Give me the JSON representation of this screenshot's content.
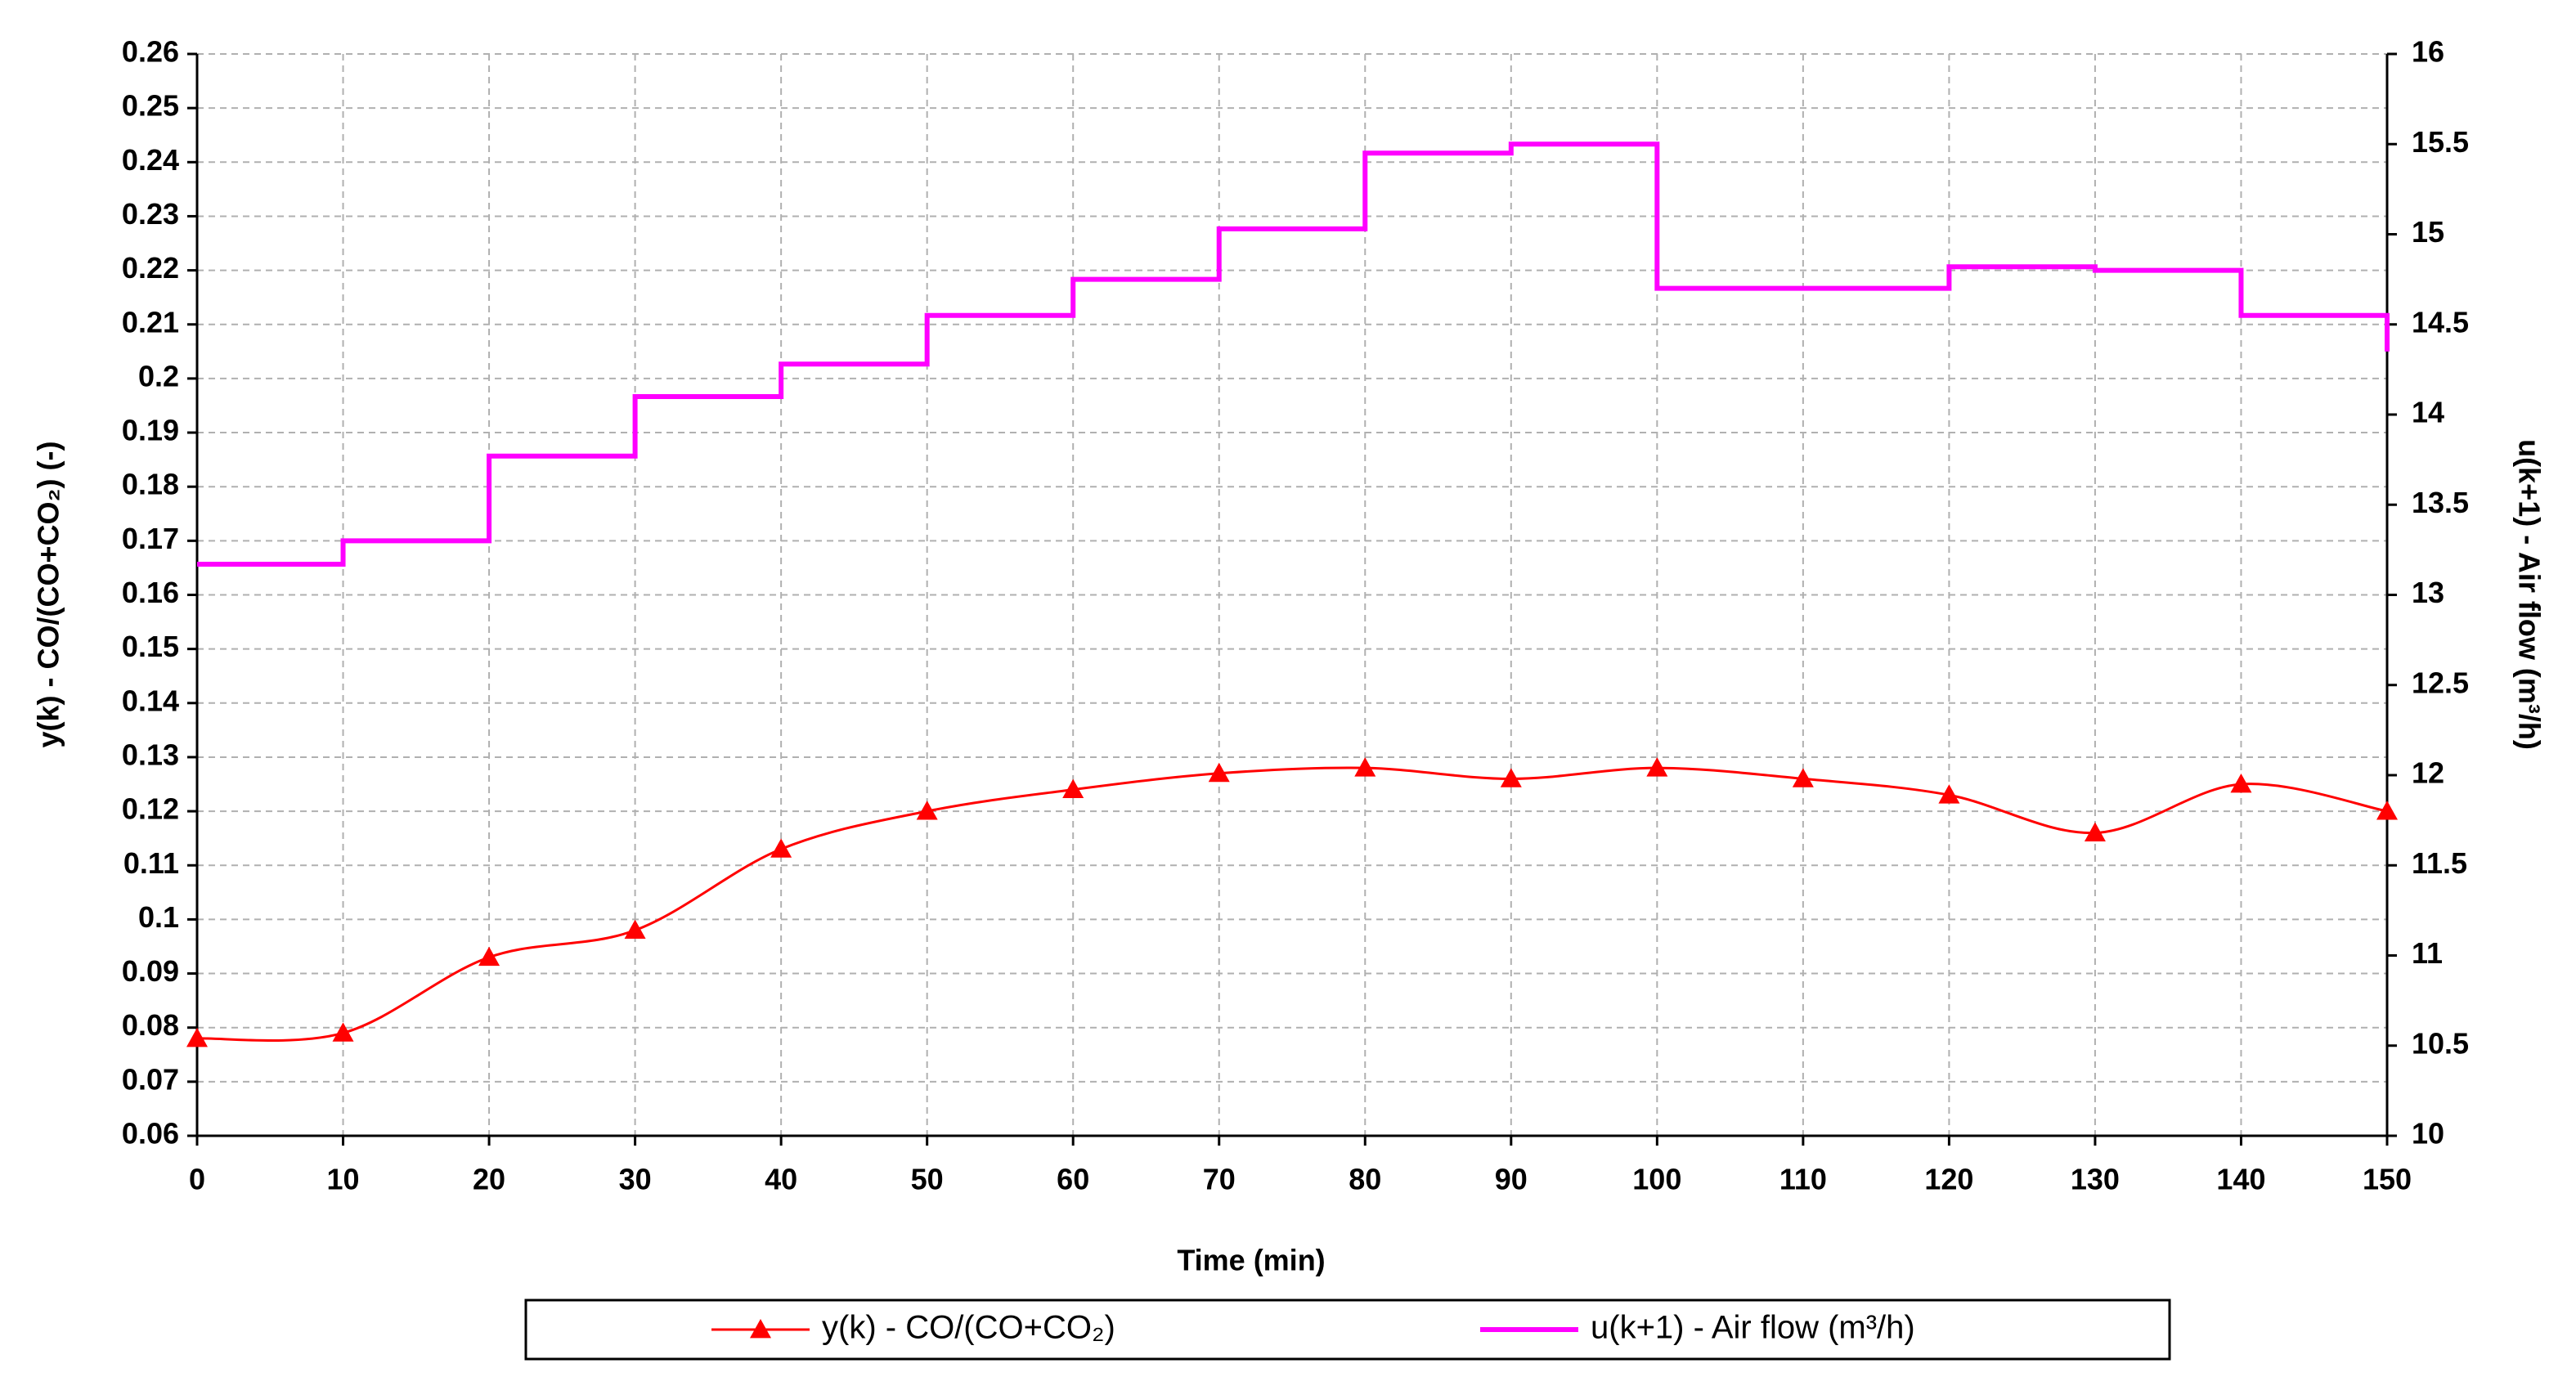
{
  "chart_data": {
    "type": "line",
    "x_label": "Time (min)",
    "y_label": "y(k) - CO/(CO+CO₂)  (-)",
    "y2_label": "u(k+1) - Air flow (m³/h)",
    "x": [
      0,
      10,
      20,
      30,
      40,
      50,
      60,
      70,
      80,
      90,
      100,
      110,
      120,
      130,
      140,
      150
    ],
    "series": [
      {
        "name": "y(k) - CO/(CO+CO₂)",
        "color": "#ff0000",
        "marker": "triangle",
        "smooth": true,
        "values": [
          0.078,
          0.079,
          0.093,
          0.098,
          0.113,
          0.12,
          0.124,
          0.127,
          0.128,
          0.126,
          0.128,
          0.126,
          0.123,
          0.116,
          0.125,
          0.12
        ]
      },
      {
        "name": "u(k+1) - Air flow (m³/h)",
        "color": "#ff00ff",
        "step": "post",
        "axis": "y2",
        "values": [
          13.17,
          13.3,
          13.77,
          14.1,
          14.28,
          14.55,
          14.75,
          15.03,
          15.45,
          15.5,
          14.7,
          14.7,
          14.82,
          14.8,
          14.55,
          14.35
        ]
      }
    ],
    "xlim": [
      0,
      150
    ],
    "xticks": [
      0,
      10,
      20,
      30,
      40,
      50,
      60,
      70,
      80,
      90,
      100,
      110,
      120,
      130,
      140,
      150
    ],
    "ylim": [
      0.06,
      0.26
    ],
    "yticks": [
      0.06,
      0.07,
      0.08,
      0.09,
      0.1,
      0.11,
      0.12,
      0.13,
      0.14,
      0.15,
      0.16,
      0.17,
      0.18,
      0.19,
      0.2,
      0.21,
      0.22,
      0.23,
      0.24,
      0.25,
      0.26
    ],
    "y2lim": [
      10,
      16
    ],
    "y2ticks": [
      10,
      10.5,
      11,
      11.5,
      12,
      12.5,
      13,
      13.5,
      14,
      14.5,
      15,
      15.5,
      16
    ],
    "grid": true,
    "legend": "bottom"
  }
}
